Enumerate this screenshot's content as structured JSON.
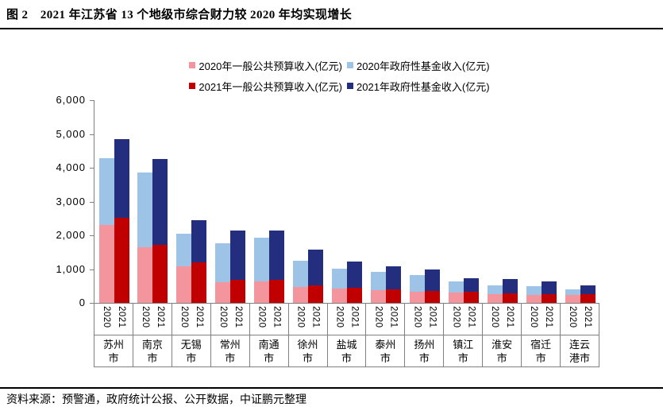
{
  "figure": {
    "title": "图 2　2021 年江苏省 13 个地级市综合财力较 2020 年均实现增长",
    "source": "资料来源：预警通，政府统计公报、公开数据，中证鹏元整理"
  },
  "colors": {
    "budget_2020": "#F4949C",
    "fund_2020": "#9DC3E6",
    "budget_2021": "#C00000",
    "fund_2021": "#232E7F",
    "axis": "#808080",
    "rule": "#000000"
  },
  "chart_data": {
    "type": "bar",
    "stacked": true,
    "unit": "亿元",
    "ylim": [
      0,
      6000
    ],
    "ytick_interval": 1000,
    "ytick_labels": [
      "0",
      "1,000",
      "2,000",
      "3,000",
      "4,000",
      "5,000",
      "6,000"
    ],
    "grid": false,
    "legend_position": "top",
    "bar_labels": [
      "2020",
      "2021"
    ],
    "categories": [
      "苏州市",
      "南京市",
      "无锡市",
      "常州市",
      "南通市",
      "徐州市",
      "盐城市",
      "泰州市",
      "扬州市",
      "镇江市",
      "淮安市",
      "宿迁市",
      "连云港市"
    ],
    "series": [
      {
        "key": "budget-2020",
        "name": "2020年一般公共预算收入(亿元)",
        "color": "#F4949C",
        "values": [
          2303,
          1638,
          1076,
          617,
          639,
          476,
          418,
          366,
          320,
          302,
          254,
          231,
          238
        ]
      },
      {
        "key": "fund-2020",
        "name": "2020年政府性基金收入(亿元)",
        "color": "#9DC3E6",
        "values": [
          1982,
          2222,
          976,
          1145,
          1302,
          774,
          596,
          561,
          505,
          328,
          265,
          271,
          163
        ]
      },
      {
        "key": "budget-2021",
        "name": "2021年一般公共预算收入(亿元)",
        "color": "#C00000",
        "values": [
          2510,
          1730,
          1201,
          675,
          693,
          526,
          451,
          402,
          349,
          322,
          283,
          253,
          259
        ]
      },
      {
        "key": "fund-2021",
        "name": "2021年政府性基金收入(亿元)",
        "color": "#232E7F",
        "values": [
          2341,
          2522,
          1244,
          1464,
          1446,
          1047,
          768,
          675,
          649,
          402,
          432,
          377,
          260
        ]
      }
    ]
  }
}
